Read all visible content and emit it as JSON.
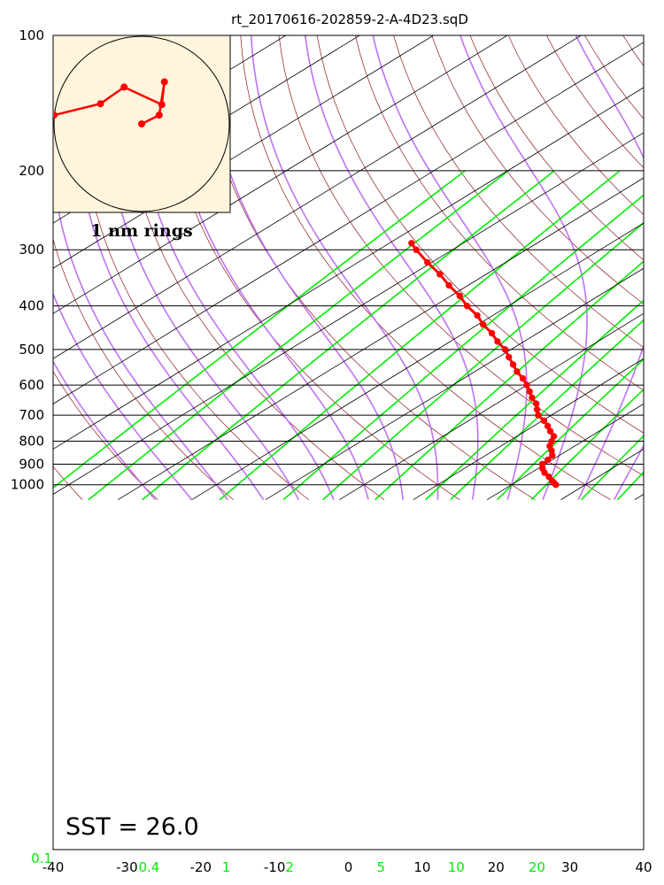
{
  "title": "rt_20170616-202859-2-A-4D23.sqD",
  "sst_label": "SST = 26.0",
  "hodograph": {
    "rings_label": "1 nm rings",
    "background": "#fff5dc",
    "points": [
      [
        -1.0,
        0.1
      ],
      [
        -0.47,
        0.23
      ],
      [
        -0.2,
        0.42
      ],
      [
        0.23,
        0.22
      ],
      [
        0.26,
        0.48
      ],
      [
        0.2,
        0.1
      ],
      [
        0.0,
        0.0
      ]
    ]
  },
  "colors": {
    "dry_adiabat": "#8b1a1a",
    "moist_adiabat": "#bf73f0",
    "mixing_ratio": "#00ee00",
    "isotherm": "#000000",
    "isobar": "#000000",
    "temperature": "#ff0000"
  },
  "chart_data": {
    "type": "skew-t",
    "x_axis_label_values": [
      "-40",
      "-30",
      "-20",
      "-10",
      "0",
      "10",
      "20",
      "30",
      "40"
    ],
    "xlim_celsius": [
      -40,
      40
    ],
    "ylim_hpa": [
      100,
      1050
    ],
    "y_axis_log": true,
    "pressure_labels": [
      "100",
      "200",
      "300",
      "400",
      "500",
      "600",
      "700",
      "800",
      "900",
      "1000"
    ],
    "mixing_ratio_labels": [
      "0.1",
      "0.4",
      "1",
      "2",
      "5",
      "10",
      "20"
    ],
    "temperature_profile": {
      "pressure_hpa": [
        1000,
        990,
        980,
        960,
        940,
        920,
        900,
        880,
        860,
        840,
        820,
        800,
        780,
        760,
        740,
        720,
        700,
        680,
        660,
        640,
        620,
        600,
        580,
        560,
        540,
        520,
        500,
        480,
        460,
        440,
        420,
        400,
        380,
        360,
        340,
        320,
        300,
        290
      ],
      "temperature_c": [
        26.0,
        25.3,
        24.6,
        23.3,
        21.8,
        20.6,
        19.6,
        19.4,
        19.0,
        17.9,
        16.6,
        15.8,
        15.0,
        13.4,
        11.9,
        10.2,
        8.2,
        6.8,
        5.4,
        3.5,
        1.8,
        0.0,
        -2.0,
        -4.3,
        -6.4,
        -8.6,
        -10.8,
        -13.6,
        -16.2,
        -19.3,
        -22.1,
        -25.6,
        -28.8,
        -32.6,
        -36.3,
        -40.6,
        -44.9,
        -47.0
      ]
    }
  }
}
